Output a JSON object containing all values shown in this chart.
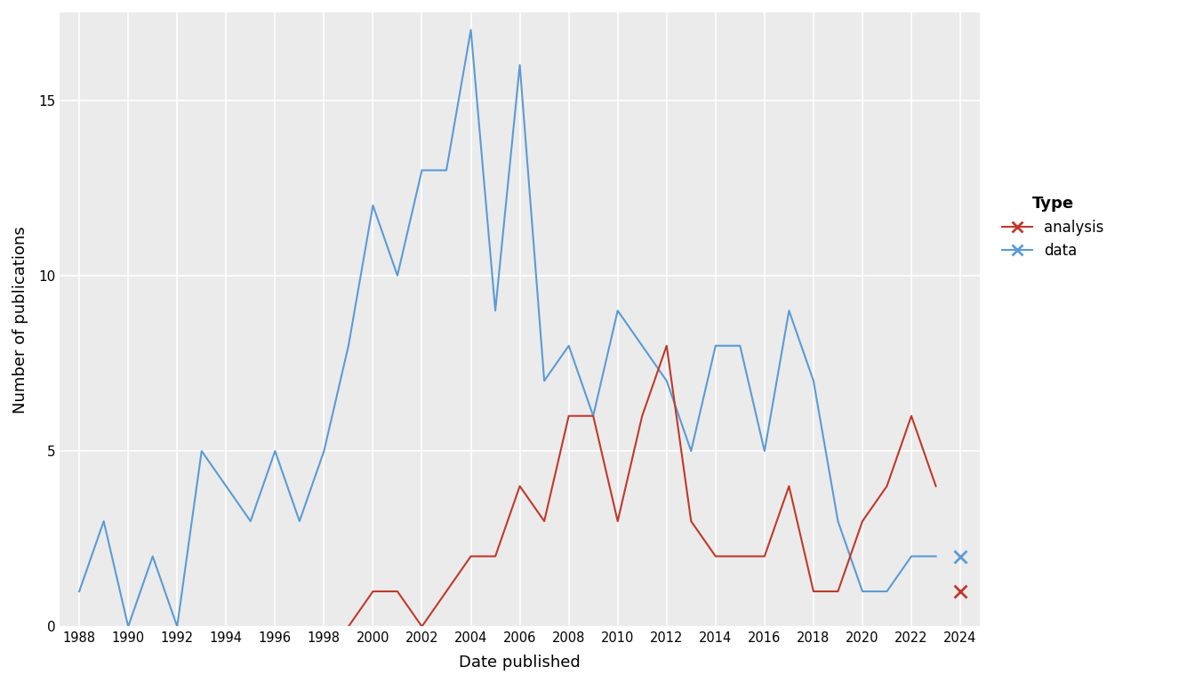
{
  "data_years": [
    1988,
    1989,
    1990,
    1991,
    1992,
    1993,
    1994,
    1995,
    1996,
    1997,
    1998,
    1999,
    2000,
    2001,
    2002,
    2003,
    2004,
    2005,
    2006,
    2007,
    2008,
    2009,
    2010,
    2011,
    2012,
    2013,
    2014,
    2015,
    2016,
    2017,
    2018,
    2019,
    2020,
    2021,
    2022,
    2023
  ],
  "data_values": [
    1,
    3,
    0,
    2,
    0,
    5,
    4,
    3,
    5,
    3,
    5,
    8,
    12,
    10,
    13,
    13,
    17,
    9,
    16,
    7,
    8,
    6,
    9,
    8,
    7,
    5,
    8,
    8,
    5,
    9,
    7,
    3,
    1,
    1,
    2,
    2
  ],
  "data_last_x": 2024,
  "data_last_y": 2,
  "analysis_years": [
    1999,
    2000,
    2001,
    2002,
    2003,
    2004,
    2005,
    2006,
    2007,
    2008,
    2009,
    2010,
    2011,
    2012,
    2013,
    2014,
    2015,
    2016,
    2017,
    2018,
    2019,
    2020,
    2021,
    2022,
    2023
  ],
  "analysis_values": [
    0,
    1,
    1,
    0,
    1,
    2,
    2,
    4,
    3,
    6,
    6,
    3,
    6,
    8,
    3,
    2,
    2,
    2,
    4,
    1,
    1,
    3,
    4,
    6,
    4
  ],
  "analysis_last_x": 2024,
  "analysis_last_y": 1,
  "data_color": "#5b9bd5",
  "analysis_color": "#c0392b",
  "xlabel": "Date published",
  "ylabel": "Number of publications",
  "legend_title": "Type",
  "ylim": [
    0,
    17.5
  ],
  "yticks": [
    0,
    5,
    10,
    15
  ],
  "xticks": [
    1988,
    1990,
    1992,
    1994,
    1996,
    1998,
    2000,
    2002,
    2004,
    2006,
    2008,
    2010,
    2012,
    2014,
    2016,
    2018,
    2020,
    2022,
    2024
  ],
  "xlim": [
    1987.2,
    2024.8
  ],
  "background_color": "#ebebeb",
  "grid_color": "#ffffff"
}
